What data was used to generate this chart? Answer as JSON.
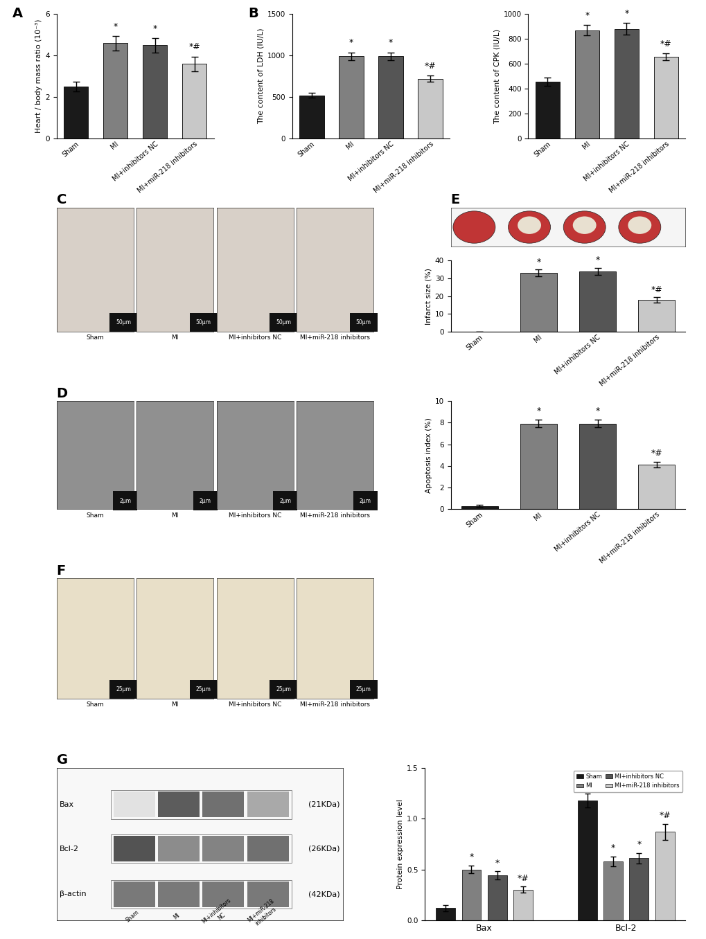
{
  "categories": [
    "Sham",
    "MI",
    "MI+inhibitors NC",
    "MI+miR-218 inhibitors"
  ],
  "bar_colors": [
    "#1a1a1a",
    "#808080",
    "#555555",
    "#c8c8c8"
  ],
  "panel_A": {
    "ylabel": "Heart / body mass ratio (10⁻³)",
    "ylim": [
      0,
      6
    ],
    "yticks": [
      0,
      2,
      4,
      6
    ],
    "values": [
      2.5,
      4.6,
      4.5,
      3.6
    ],
    "errors": [
      0.25,
      0.35,
      0.35,
      0.35
    ],
    "sig": [
      "",
      "*",
      "*",
      "*#"
    ]
  },
  "panel_B_LDH": {
    "ylabel": "The content of LDH (IU/L)",
    "ylim": [
      0,
      1500
    ],
    "yticks": [
      0,
      500,
      1000,
      1500
    ],
    "values": [
      520,
      990,
      990,
      720
    ],
    "errors": [
      28,
      48,
      48,
      38
    ],
    "sig": [
      "",
      "*",
      "*",
      "*#"
    ]
  },
  "panel_B_CPK": {
    "ylabel": "The content of CPK (IU/L)",
    "ylim": [
      0,
      1000
    ],
    "yticks": [
      0,
      200,
      400,
      600,
      800,
      1000
    ],
    "values": [
      455,
      870,
      880,
      655
    ],
    "errors": [
      32,
      42,
      48,
      28
    ],
    "sig": [
      "",
      "*",
      "*",
      "*#"
    ]
  },
  "panel_E": {
    "ylabel": "Infarct size (%)",
    "ylim": [
      0,
      40
    ],
    "yticks": [
      0,
      10,
      20,
      30,
      40
    ],
    "values": [
      0,
      33,
      34,
      18
    ],
    "errors": [
      0,
      2.0,
      2.0,
      1.5
    ],
    "sig": [
      "",
      "*",
      "*",
      "*#"
    ]
  },
  "panel_F": {
    "ylabel": "Apoptosis index (%)",
    "ylim": [
      0,
      10
    ],
    "yticks": [
      0,
      2,
      4,
      6,
      8,
      10
    ],
    "values": [
      0.3,
      7.9,
      7.9,
      4.1
    ],
    "errors": [
      0.1,
      0.35,
      0.35,
      0.25
    ],
    "sig": [
      "",
      "*",
      "*",
      "*#"
    ]
  },
  "panel_G": {
    "ylabel": "Protein expression level",
    "ylim": [
      0.0,
      1.5
    ],
    "yticks": [
      0.0,
      0.5,
      1.0,
      1.5
    ],
    "proteins": [
      "Bax",
      "Bcl-2"
    ],
    "bax_values": [
      0.12,
      0.5,
      0.44,
      0.3
    ],
    "bax_errors": [
      0.03,
      0.04,
      0.04,
      0.03
    ],
    "bax_sig": [
      "",
      "*",
      "*",
      "*#"
    ],
    "bcl2_values": [
      1.18,
      0.58,
      0.61,
      0.87
    ],
    "bcl2_errors": [
      0.07,
      0.05,
      0.05,
      0.08
    ],
    "bcl2_sig": [
      "",
      "*",
      "*",
      "*#"
    ]
  },
  "legend_labels": [
    "Sham",
    "MI",
    "MI+inhibitors NC",
    "MI+miR-218 inhibitors"
  ],
  "legend_colors": [
    "#1a1a1a",
    "#808080",
    "#555555",
    "#c8c8c8"
  ],
  "wb_bands": {
    "proteins": [
      "Bax",
      "Bcl-2",
      "β-actin"
    ],
    "kdas": [
      "(21KDa)",
      "(26KDa)",
      "(42KDa)"
    ],
    "intensities_bax": [
      0.15,
      0.85,
      0.75,
      0.45
    ],
    "intensities_bcl2": [
      0.9,
      0.6,
      0.65,
      0.75
    ],
    "intensities_actin": [
      0.7,
      0.7,
      0.7,
      0.7
    ]
  },
  "figure_bg": "#ffffff"
}
